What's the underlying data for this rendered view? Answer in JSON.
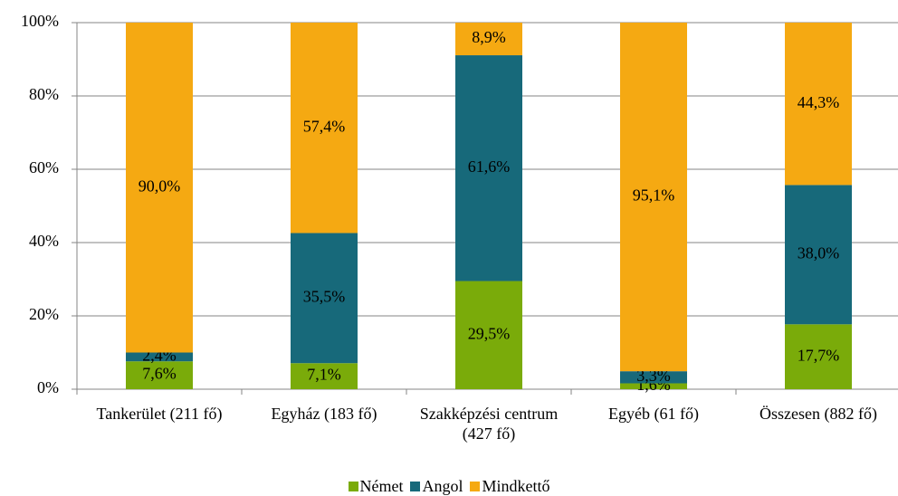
{
  "chart_data": {
    "type": "stacked_bar",
    "categories": [
      "Tankerület (211 fő)",
      "Egyház (183 fő)",
      "Szakképzési centrum (427 fő)",
      "Egyéb (61 fő)",
      "Összesen (882 fő)"
    ],
    "series": [
      {
        "name": "Német",
        "color": "#7aab0a",
        "values": [
          7.6,
          7.1,
          29.5,
          1.6,
          17.7
        ],
        "value_labels": [
          "7,6%",
          "7,1%",
          "29,5%",
          "1,6%",
          "17,7%"
        ]
      },
      {
        "name": "Angol",
        "color": "#17697a",
        "values": [
          2.4,
          35.5,
          61.6,
          3.3,
          38.0
        ],
        "value_labels": [
          "2,4%",
          "35,5%",
          "61,6%",
          "3,3%",
          "38,0%"
        ]
      },
      {
        "name": "Mindkettő",
        "color": "#f5a912",
        "values": [
          90.0,
          57.4,
          8.9,
          95.1,
          44.3
        ],
        "value_labels": [
          "90,0%",
          "57,4%",
          "8,9%",
          "95,1%",
          "44,3%"
        ]
      }
    ],
    "ylim": [
      0,
      100
    ],
    "yticks": [
      {
        "value": 0,
        "label": "0%"
      },
      {
        "value": 20,
        "label": "20%"
      },
      {
        "value": 40,
        "label": "40%"
      },
      {
        "value": 60,
        "label": "60%"
      },
      {
        "value": 80,
        "label": "80%"
      },
      {
        "value": 100,
        "label": "100%"
      }
    ],
    "grid": true,
    "legend": "bottom"
  }
}
